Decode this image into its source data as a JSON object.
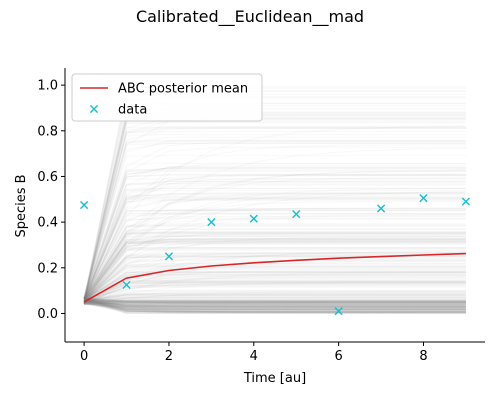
{
  "chart_data": {
    "type": "line",
    "title": "Calibrated__Euclidean__mad",
    "xlabel": "Time [au]",
    "ylabel": "Species B",
    "xlim": [
      -0.45,
      9.45
    ],
    "ylim": [
      -0.125,
      1.075
    ],
    "x_ticks": [
      0,
      2,
      4,
      6,
      8
    ],
    "y_ticks": [
      0.0,
      0.2,
      0.4,
      0.6,
      0.8,
      1.0
    ],
    "x_tick_labels": [
      "0",
      "2",
      "4",
      "6",
      "8"
    ],
    "y_tick_labels": [
      "0.0",
      "0.2",
      "0.4",
      "0.6",
      "0.8",
      "1.0"
    ],
    "grid": false,
    "legend_position": "top-left",
    "series": [
      {
        "name": "ABC posterior mean",
        "kind": "line",
        "color": "#d62728",
        "x": [
          0,
          1,
          2,
          3,
          4,
          5,
          6,
          7,
          8,
          9
        ],
        "y": [
          0.05,
          0.155,
          0.188,
          0.208,
          0.222,
          0.233,
          0.242,
          0.249,
          0.256,
          0.262
        ]
      },
      {
        "name": "data",
        "kind": "marker",
        "marker": "x",
        "color": "#17becf",
        "x": [
          0,
          1,
          2,
          3,
          4,
          5,
          6,
          7,
          8,
          9
        ],
        "y": [
          0.475,
          0.125,
          0.25,
          0.4,
          0.415,
          0.435,
          0.01,
          0.46,
          0.505,
          0.49
        ]
      }
    ],
    "posterior_samples": {
      "color": "#808080",
      "description_free": true,
      "count": 400
    }
  }
}
